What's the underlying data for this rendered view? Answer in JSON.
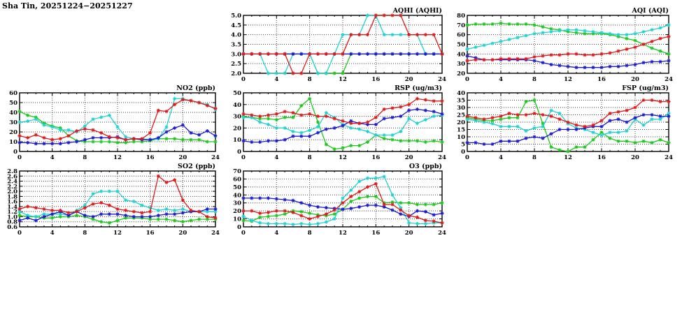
{
  "page_title": "Sha Tin, 20251224−20251227",
  "chart_data": [
    {
      "id": "aqhi",
      "type": "line",
      "title": "AQHI (AQHI)",
      "xlim": [
        0,
        24
      ],
      "xticks": [
        0,
        4,
        8,
        12,
        16,
        20,
        24
      ],
      "ylim": [
        2.0,
        5.0
      ],
      "ytick_step": 0.5,
      "ydecimals": 1,
      "grid": true,
      "legend": "none",
      "series": [
        {
          "name": "series-green",
          "color": "#19c819",
          "values": [
            3,
            3,
            3,
            3,
            3,
            3,
            3,
            3,
            3,
            2,
            2,
            2,
            2,
            3,
            3,
            3,
            3,
            3,
            3,
            3,
            3,
            3,
            3,
            3,
            3
          ]
        },
        {
          "name": "series-cyan",
          "color": "#1ed2d2",
          "values": [
            3,
            3,
            3,
            2,
            2,
            2,
            3,
            3,
            3,
            2,
            2,
            3,
            4,
            4,
            4,
            5,
            5,
            4,
            4,
            4,
            4,
            4,
            3,
            3,
            3
          ]
        },
        {
          "name": "series-blue",
          "color": "#1919d2",
          "values": [
            3,
            3,
            3,
            3,
            3,
            3,
            3,
            3,
            3,
            3,
            3,
            3,
            3,
            3,
            3,
            3,
            3,
            3,
            3,
            3,
            3,
            3,
            3,
            3,
            3
          ]
        },
        {
          "name": "series-red",
          "color": "#e01818",
          "values": [
            3,
            3,
            3,
            3,
            3,
            3,
            2,
            2,
            3,
            3,
            3,
            3,
            3,
            4,
            4,
            4,
            5,
            5,
            5,
            5,
            4,
            4,
            4,
            4,
            3
          ]
        }
      ]
    },
    {
      "id": "aqi",
      "type": "line",
      "title": "AQI (AQI)",
      "xlim": [
        0,
        24
      ],
      "xticks": [
        0,
        4,
        8,
        12,
        16,
        20,
        24
      ],
      "ylim": [
        20,
        80
      ],
      "ytick_step": 10,
      "ydecimals": 0,
      "grid": true,
      "legend": "none",
      "series": [
        {
          "name": "series-green",
          "color": "#19c819",
          "values": [
            70,
            71,
            71,
            71,
            72,
            71,
            71,
            71,
            70,
            68,
            66,
            65,
            63,
            62,
            61,
            61,
            61,
            60,
            58,
            56,
            54,
            50,
            46,
            43,
            40
          ]
        },
        {
          "name": "series-cyan",
          "color": "#1ed2d2",
          "values": [
            45,
            47,
            49,
            51,
            53,
            55,
            57,
            59,
            61,
            62,
            63,
            64,
            65,
            65,
            64,
            63,
            62,
            61,
            60,
            60,
            61,
            63,
            65,
            67,
            70
          ]
        },
        {
          "name": "series-blue",
          "color": "#1919d2",
          "values": [
            38,
            36,
            34,
            34,
            34,
            34,
            34,
            34,
            33,
            31,
            29,
            28,
            27,
            26,
            26,
            26,
            26,
            27,
            27,
            28,
            29,
            31,
            32,
            32,
            33
          ]
        },
        {
          "name": "series-red",
          "color": "#e01818",
          "values": [
            33,
            34,
            34,
            34,
            35,
            35,
            35,
            35,
            37,
            38,
            39,
            39,
            40,
            40,
            39,
            39,
            40,
            41,
            43,
            45,
            47,
            50,
            53,
            56,
            58
          ]
        }
      ]
    },
    {
      "id": "no2",
      "type": "line",
      "title": "NO2 (ppb)",
      "xlim": [
        0,
        24
      ],
      "xticks": [
        0,
        4,
        8,
        12,
        16,
        20,
        24
      ],
      "ylim": [
        0,
        60
      ],
      "ytick_step": 10,
      "ydecimals": 0,
      "grid": true,
      "legend": "none",
      "series": [
        {
          "name": "series-green",
          "color": "#19c819",
          "values": [
            41,
            37,
            35,
            29,
            26,
            24,
            16,
            11,
            10,
            10,
            10,
            10,
            9,
            9,
            10,
            10,
            11,
            13,
            13,
            13,
            12,
            12,
            12,
            10,
            10
          ]
        },
        {
          "name": "series-cyan",
          "color": "#1ed2d2",
          "values": [
            30,
            31,
            33,
            27,
            25,
            22,
            22,
            20,
            26,
            33,
            35,
            37,
            25,
            15,
            13,
            13,
            12,
            13,
            25,
            54,
            54,
            52,
            50,
            48,
            43
          ]
        },
        {
          "name": "series-blue",
          "color": "#1919d2",
          "values": [
            9,
            9,
            8,
            8,
            8,
            8,
            9,
            10,
            12,
            14,
            14,
            14,
            15,
            12,
            13,
            12,
            12,
            14,
            20,
            24,
            27,
            19,
            17,
            21,
            16
          ]
        },
        {
          "name": "series-red",
          "color": "#e01818",
          "values": [
            16,
            14,
            17,
            14,
            12,
            13,
            16,
            21,
            23,
            22,
            19,
            15,
            14,
            12,
            13,
            13,
            19,
            42,
            41,
            48,
            53,
            52,
            50,
            47,
            44
          ]
        }
      ]
    },
    {
      "id": "rsp",
      "type": "line",
      "title": "RSP (ug/m3)",
      "xlim": [
        0,
        24
      ],
      "xticks": [
        0,
        4,
        8,
        12,
        16,
        20,
        24
      ],
      "ylim": [
        0,
        50
      ],
      "ytick_step": 10,
      "ydecimals": 0,
      "grid": true,
      "legend": "none",
      "series": [
        {
          "name": "series-green",
          "color": "#19c819",
          "values": [
            30,
            29,
            28,
            28,
            27,
            29,
            29,
            39,
            45,
            25,
            6,
            2,
            3,
            5,
            5,
            8,
            14,
            11,
            10,
            9,
            9,
            9,
            8,
            9,
            8
          ]
        },
        {
          "name": "series-cyan",
          "color": "#1ed2d2",
          "values": [
            29,
            29,
            25,
            23,
            20,
            20,
            17,
            16,
            18,
            21,
            33,
            29,
            23,
            20,
            19,
            17,
            14,
            14,
            14,
            17,
            28,
            24,
            27,
            30,
            31
          ]
        },
        {
          "name": "series-blue",
          "color": "#1919d2",
          "values": [
            9,
            8,
            8,
            9,
            9,
            10,
            13,
            13,
            13,
            16,
            19,
            20,
            22,
            26,
            24,
            23,
            23,
            28,
            29,
            30,
            35,
            36,
            35,
            34,
            32
          ]
        },
        {
          "name": "series-red",
          "color": "#e01818",
          "values": [
            32,
            31,
            30,
            31,
            32,
            34,
            33,
            31,
            32,
            30,
            30,
            28,
            26,
            24,
            24,
            25,
            29,
            36,
            37,
            38,
            40,
            45,
            44,
            43,
            43
          ]
        }
      ]
    },
    {
      "id": "fsp",
      "type": "line",
      "title": "FSP (ug/m3)",
      "xlim": [
        0,
        24
      ],
      "xticks": [
        0,
        4,
        8,
        12,
        16,
        20,
        24
      ],
      "ylim": [
        0,
        40
      ],
      "ytick_step": 5,
      "ydecimals": 0,
      "grid": true,
      "legend": "none",
      "series": [
        {
          "name": "series-green",
          "color": "#19c819",
          "values": [
            23,
            22,
            21,
            21,
            22,
            23,
            23,
            34,
            35,
            19,
            3,
            1,
            0,
            3,
            3,
            8,
            13,
            9,
            7,
            7,
            6,
            7,
            6,
            8,
            6
          ]
        },
        {
          "name": "series-cyan",
          "color": "#1ed2d2",
          "values": [
            22,
            21,
            20,
            19,
            17,
            17,
            17,
            14,
            16,
            17,
            28,
            26,
            19,
            16,
            15,
            13,
            11,
            13,
            13,
            14,
            22,
            18,
            22,
            22,
            26
          ]
        },
        {
          "name": "series-blue",
          "color": "#1919d2",
          "values": [
            6,
            6,
            5,
            5,
            7,
            7,
            7,
            9,
            10,
            9,
            12,
            15,
            15,
            15,
            16,
            17,
            17,
            21,
            22,
            20,
            23,
            25,
            25,
            24,
            24
          ]
        },
        {
          "name": "series-red",
          "color": "#e01818",
          "values": [
            24,
            23,
            22,
            23,
            24,
            26,
            25,
            25,
            26,
            25,
            24,
            22,
            20,
            18,
            17,
            18,
            21,
            26,
            27,
            28,
            30,
            35,
            35,
            34,
            34
          ]
        }
      ]
    },
    {
      "id": "so2",
      "type": "line",
      "title": "SO2 (ppb)",
      "xlim": [
        0,
        24
      ],
      "xticks": [
        0,
        4,
        8,
        12,
        16,
        20,
        24
      ],
      "ylim": [
        0.6,
        2.8
      ],
      "ytick_step": 0.2,
      "ydecimals": 1,
      "grid": true,
      "legend": "none",
      "series": [
        {
          "name": "series-green",
          "color": "#19c819",
          "values": [
            1.05,
            1.0,
            1.0,
            0.95,
            0.95,
            1.0,
            1.0,
            1.05,
            1.0,
            0.9,
            0.8,
            0.75,
            0.85,
            0.95,
            0.95,
            0.95,
            0.9,
            0.9,
            0.9,
            0.85,
            0.8,
            0.85,
            0.9,
            0.9,
            0.9
          ]
        },
        {
          "name": "series-cyan",
          "color": "#1ed2d2",
          "values": [
            1.2,
            1.05,
            1.0,
            1.1,
            1.1,
            1.1,
            1.05,
            1.25,
            1.45,
            1.9,
            2.0,
            2.0,
            2.0,
            1.65,
            1.6,
            1.45,
            1.35,
            1.25,
            1.3,
            1.25,
            1.3,
            1.2,
            1.2,
            1.2,
            1.2
          ]
        },
        {
          "name": "series-blue",
          "color": "#1919d2",
          "values": [
            0.85,
            0.95,
            0.85,
            1.0,
            1.1,
            1.2,
            1.05,
            1.2,
            1.05,
            1.0,
            1.1,
            1.1,
            1.1,
            1.05,
            1.0,
            1.0,
            1.0,
            1.05,
            1.1,
            1.1,
            1.15,
            1.2,
            1.2,
            1.3,
            1.3
          ]
        },
        {
          "name": "series-red",
          "color": "#e01818",
          "values": [
            1.3,
            1.4,
            1.35,
            1.3,
            1.25,
            1.25,
            1.15,
            1.2,
            1.35,
            1.5,
            1.55,
            1.45,
            1.3,
            1.25,
            1.2,
            1.15,
            1.2,
            2.6,
            2.35,
            2.45,
            1.65,
            1.25,
            1.2,
            1.0,
            0.95
          ]
        }
      ]
    },
    {
      "id": "o3",
      "type": "line",
      "title": "O3 (ppb)",
      "xlim": [
        0,
        24
      ],
      "xticks": [
        0,
        4,
        8,
        12,
        16,
        20,
        24
      ],
      "ylim": [
        0,
        70
      ],
      "ytick_step": 10,
      "ydecimals": 0,
      "grid": true,
      "legend": "none",
      "series": [
        {
          "name": "series-green",
          "color": "#19c819",
          "values": [
            8,
            7,
            12,
            13,
            14,
            16,
            20,
            19,
            17,
            15,
            14,
            16,
            22,
            32,
            36,
            38,
            38,
            30,
            31,
            30,
            30,
            28,
            28,
            28,
            30
          ]
        },
        {
          "name": "series-cyan",
          "color": "#1ed2d2",
          "values": [
            13,
            8,
            5,
            4,
            4,
            4,
            3,
            4,
            3,
            4,
            6,
            10,
            36,
            46,
            57,
            61,
            61,
            63,
            40,
            24,
            5,
            4,
            4,
            5,
            5
          ]
        },
        {
          "name": "series-blue",
          "color": "#1919d2",
          "values": [
            36,
            36,
            36,
            36,
            35,
            34,
            33,
            30,
            27,
            25,
            24,
            23,
            22,
            23,
            25,
            27,
            27,
            25,
            21,
            16,
            13,
            20,
            19,
            15,
            17
          ]
        },
        {
          "name": "series-red",
          "color": "#e01818",
          "values": [
            20,
            20,
            17,
            18,
            20,
            20,
            18,
            14,
            10,
            13,
            16,
            21,
            30,
            38,
            44,
            50,
            54,
            28,
            28,
            21,
            14,
            12,
            8,
            7,
            5
          ]
        }
      ]
    }
  ]
}
